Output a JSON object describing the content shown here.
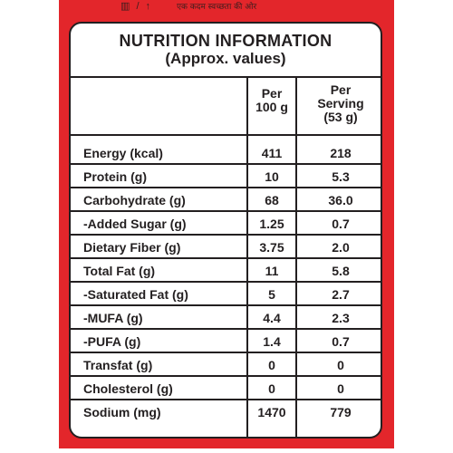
{
  "top_strip": {
    "icon_text": "▥ / ↑",
    "hindi_text": "एक कदम स्वच्छता की ओर"
  },
  "panel": {
    "title": "NUTRITION INFORMATION",
    "subtitle": "(Approx. values)"
  },
  "columns": {
    "per100_line1": "Per",
    "per100_line2": "100 g",
    "serving_line1": "Per",
    "serving_line2": "Serving",
    "serving_line3": "(53 g)"
  },
  "rows": [
    {
      "name": "Energy (kcal)",
      "per100": "411",
      "serving": "218"
    },
    {
      "name": "Protein (g)",
      "per100": "10",
      "serving": "5.3"
    },
    {
      "name": "Carbohydrate (g)",
      "per100": "68",
      "serving": "36.0"
    },
    {
      "name": "-Added Sugar (g)",
      "per100": "1.25",
      "serving": "0.7"
    },
    {
      "name": "Dietary Fiber (g)",
      "per100": "3.75",
      "serving": "2.0"
    },
    {
      "name": "Total Fat (g)",
      "per100": "11",
      "serving": "5.8"
    },
    {
      "name": "-Saturated Fat (g)",
      "per100": "5",
      "serving": "2.7"
    },
    {
      "name": "-MUFA (g)",
      "per100": "4.4",
      "serving": "2.3"
    },
    {
      "name": "-PUFA (g)",
      "per100": "1.4",
      "serving": "0.7"
    },
    {
      "name": "Transfat (g)",
      "per100": "0",
      "serving": "0"
    },
    {
      "name": "Cholesterol (g)",
      "per100": "0",
      "serving": "0"
    },
    {
      "name": "Sodium (mg)",
      "per100": "1470",
      "serving": "779"
    }
  ],
  "colors": {
    "pack_red": "#e3262b",
    "ink": "#231f20",
    "panel_bg": "#ffffff"
  }
}
